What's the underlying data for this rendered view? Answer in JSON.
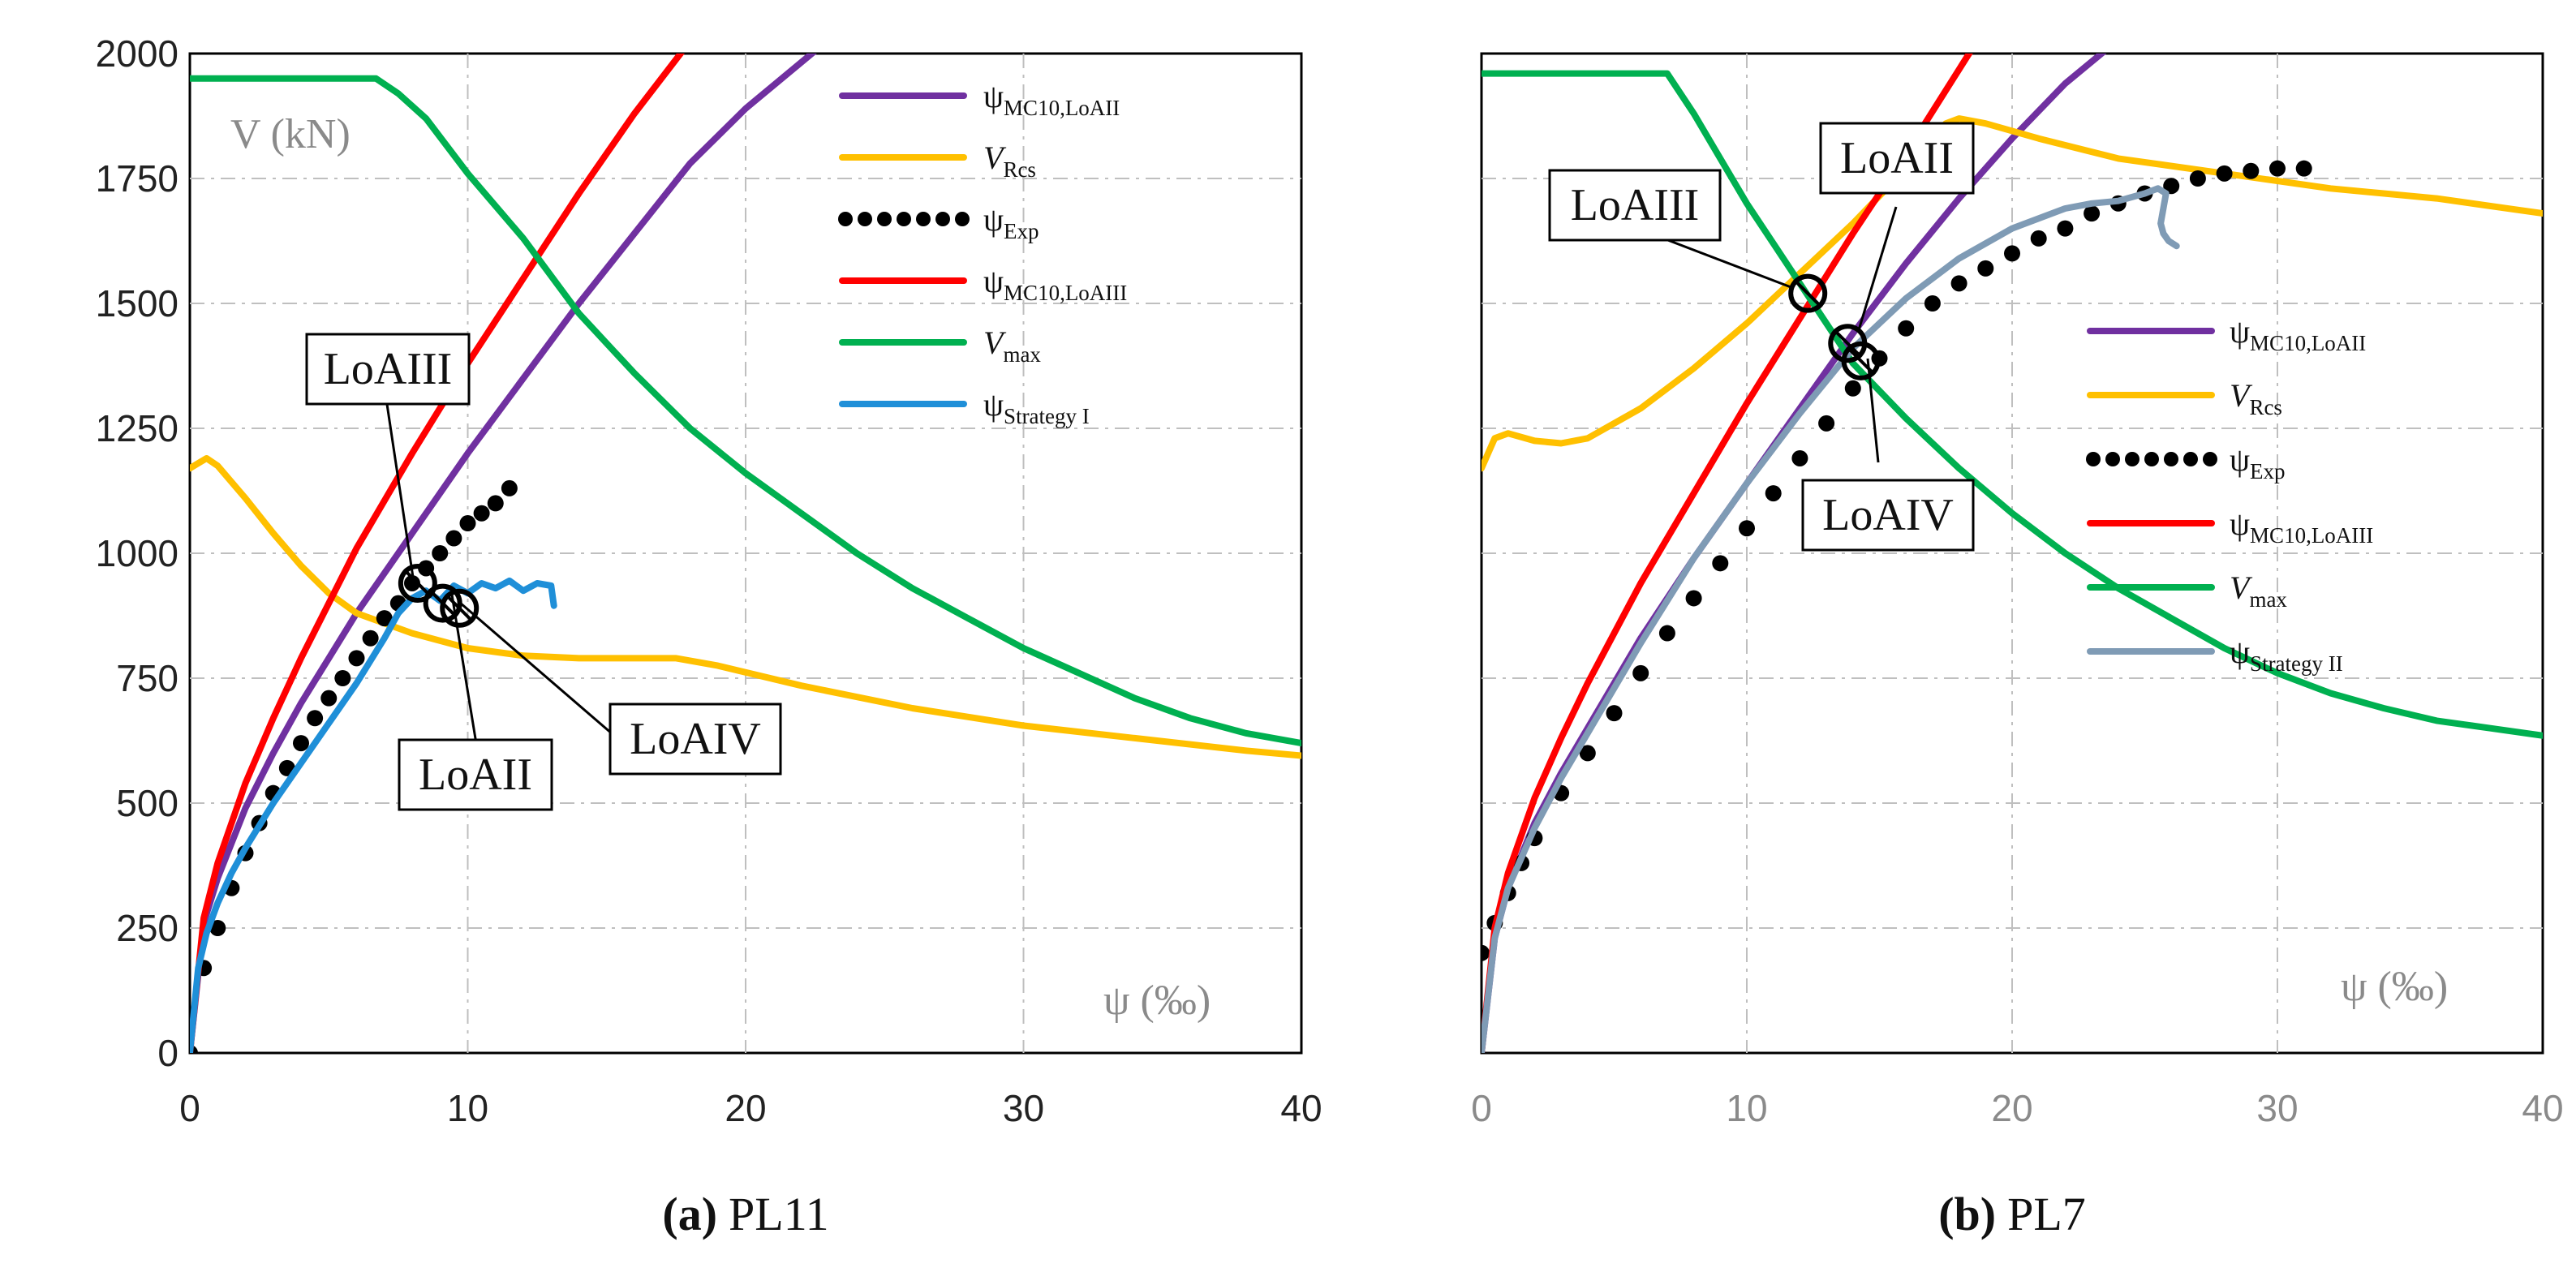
{
  "chart_data": [
    {
      "type": "line",
      "panel": "a",
      "caption_label": "(a)",
      "caption_name": "PL11",
      "ylabel": "V (kN)",
      "xlabel": "ψ (‰)",
      "xlim": [
        0,
        40
      ],
      "ylim": [
        0,
        2000
      ],
      "xticks": [
        "0",
        "10",
        "20",
        "30",
        "40"
      ],
      "yticks": [
        "0",
        "250",
        "500",
        "750",
        "1000",
        "1250",
        "1500",
        "1750",
        "2000"
      ],
      "grid": true,
      "legend_position": "top-right",
      "series": [
        {
          "key": "mc10_loaii",
          "name": "ψMC10,LoAII",
          "main": "ψ",
          "sub": "MC10,LoAII",
          "color": "#7030A0",
          "style": "solid",
          "x": [
            0,
            0.5,
            1,
            2,
            3,
            4,
            5,
            6,
            8,
            10,
            12,
            14,
            16,
            18,
            20,
            22.6
          ],
          "y": [
            0,
            260,
            350,
            490,
            600,
            700,
            790,
            880,
            1040,
            1200,
            1350,
            1500,
            1640,
            1780,
            1890,
            2010
          ]
        },
        {
          "key": "vrcs",
          "name": "VRcs",
          "main": "V",
          "sub": "Rcs",
          "color": "#FFC000",
          "style": "solid",
          "x": [
            0,
            0.3,
            0.6,
            1,
            2,
            3,
            4,
            5,
            6,
            8,
            10,
            12,
            14,
            16,
            17.5,
            19,
            22,
            26,
            30,
            34,
            38,
            40
          ],
          "y": [
            1170,
            1180,
            1190,
            1175,
            1110,
            1040,
            975,
            920,
            880,
            840,
            810,
            795,
            790,
            790,
            790,
            775,
            735,
            690,
            655,
            630,
            605,
            595
          ]
        },
        {
          "key": "exp",
          "name": "ψExp",
          "main": "ψ",
          "sub": "Exp",
          "color": "#000000",
          "style": "dotted",
          "x": [
            0,
            0.5,
            1,
            1.5,
            2,
            2.5,
            3,
            3.5,
            4,
            4.5,
            5,
            5.5,
            6,
            6.5,
            7,
            7.5,
            8,
            8.5,
            9,
            9.5,
            10,
            10.5,
            11,
            11.5
          ],
          "y": [
            0,
            170,
            250,
            330,
            400,
            460,
            520,
            570,
            620,
            670,
            710,
            750,
            790,
            830,
            870,
            900,
            940,
            970,
            1000,
            1030,
            1060,
            1080,
            1100,
            1130
          ]
        },
        {
          "key": "mc10_loaiii",
          "name": "ψMC10,LoAIII",
          "main": "ψ",
          "sub": "MC10,LoAIII",
          "color": "#FF0000",
          "style": "solid",
          "x": [
            0,
            0.5,
            1,
            2,
            3,
            4,
            5,
            6,
            8,
            10,
            12,
            14,
            16,
            17.8
          ],
          "y": [
            0,
            270,
            380,
            540,
            670,
            790,
            900,
            1010,
            1200,
            1380,
            1550,
            1720,
            1880,
            2010
          ]
        },
        {
          "key": "vmax",
          "name": "Vmax",
          "main": "V",
          "sub": "max",
          "color": "#00B050",
          "style": "solid",
          "x": [
            0,
            3,
            6.7,
            7.5,
            8.5,
            10,
            12,
            14,
            16,
            18,
            20,
            22,
            24,
            26,
            28,
            30,
            32,
            34,
            36,
            38,
            40
          ],
          "y": [
            1950,
            1950,
            1950,
            1920,
            1870,
            1760,
            1630,
            1480,
            1360,
            1250,
            1160,
            1080,
            1000,
            930,
            870,
            810,
            760,
            710,
            670,
            640,
            620
          ]
        },
        {
          "key": "strategy1",
          "name": "ψStrategy I",
          "main": "ψ",
          "sub": "Strategy I",
          "color": "#1F8FD8",
          "style": "solid",
          "x": [
            0,
            0.3,
            0.6,
            1,
            1.5,
            2,
            3,
            4,
            5,
            6,
            7,
            7.5,
            8,
            8.5,
            9,
            9.5,
            10,
            10.5,
            11,
            11.5,
            12,
            12.5,
            13,
            13.1
          ],
          "y": [
            0,
            170,
            240,
            300,
            360,
            410,
            500,
            580,
            660,
            740,
            830,
            880,
            910,
            925,
            905,
            935,
            920,
            940,
            930,
            945,
            925,
            940,
            935,
            895
          ]
        }
      ],
      "callouts": [
        {
          "text": "LoAIII",
          "point": [
            8.2,
            940
          ]
        },
        {
          "text": "LoAII",
          "point": [
            9.1,
            900
          ]
        },
        {
          "text": "LoAIV",
          "point": [
            9.7,
            890
          ]
        }
      ]
    },
    {
      "type": "line",
      "panel": "b",
      "caption_label": "(b)",
      "caption_name": "PL7",
      "xlabel": "ψ (‰)",
      "xlim": [
        0,
        40
      ],
      "ylim": [
        0,
        2000
      ],
      "xticks": [
        "0",
        "10",
        "20",
        "30",
        "40"
      ],
      "grid": true,
      "legend_position": "middle-right",
      "series": [
        {
          "key": "mc10_loaii",
          "name": "ψMC10,LoAII",
          "main": "ψ",
          "sub": "MC10,LoAII",
          "color": "#7030A0",
          "style": "solid",
          "x": [
            0,
            0.5,
            1,
            2,
            3,
            4,
            5,
            6,
            8,
            10,
            12,
            14,
            16,
            18,
            20,
            22,
            23.6
          ],
          "y": [
            0,
            230,
            330,
            460,
            560,
            650,
            740,
            830,
            990,
            1140,
            1290,
            1440,
            1580,
            1710,
            1830,
            1940,
            2010
          ]
        },
        {
          "key": "vrcs",
          "name": "VRcs",
          "main": "V",
          "sub": "Rcs",
          "color": "#FFC000",
          "style": "solid",
          "x": [
            0,
            0.5,
            1,
            2,
            3,
            4,
            6,
            8,
            10,
            12,
            14,
            16,
            17.5,
            18,
            19,
            21,
            24,
            28,
            32,
            36,
            40
          ],
          "y": [
            1170,
            1230,
            1240,
            1225,
            1220,
            1230,
            1290,
            1370,
            1460,
            1560,
            1660,
            1770,
            1860,
            1870,
            1860,
            1830,
            1790,
            1760,
            1730,
            1710,
            1680
          ]
        },
        {
          "key": "exp",
          "name": "ψExp",
          "main": "ψ",
          "sub": "Exp",
          "color": "#000000",
          "style": "dotted",
          "x": [
            0,
            0.5,
            1,
            1.5,
            2,
            3,
            4,
            5,
            6,
            7,
            8,
            9,
            10,
            11,
            12,
            13,
            14,
            15,
            16,
            17,
            18,
            19,
            20,
            21,
            22,
            23,
            24,
            25,
            26,
            27,
            28,
            29,
            30,
            31
          ],
          "y": [
            200,
            260,
            320,
            380,
            430,
            520,
            600,
            680,
            760,
            840,
            910,
            980,
            1050,
            1120,
            1190,
            1260,
            1330,
            1390,
            1450,
            1500,
            1540,
            1570,
            1600,
            1630,
            1650,
            1680,
            1700,
            1720,
            1735,
            1750,
            1760,
            1765,
            1770,
            1770
          ]
        },
        {
          "key": "mc10_loaiii",
          "name": "ψMC10,LoAIII",
          "main": "ψ",
          "sub": "MC10,LoAIII",
          "color": "#FF0000",
          "style": "solid",
          "x": [
            0,
            0.5,
            1,
            2,
            3,
            4,
            5,
            6,
            8,
            10,
            12,
            14,
            16,
            18.5
          ],
          "y": [
            0,
            250,
            360,
            510,
            630,
            740,
            840,
            940,
            1120,
            1300,
            1470,
            1640,
            1800,
            2010
          ]
        },
        {
          "key": "vmax",
          "name": "Vmax",
          "main": "V",
          "sub": "max",
          "color": "#00B050",
          "style": "solid",
          "x": [
            0,
            3,
            7,
            8,
            9,
            10,
            11,
            12,
            13,
            14,
            16,
            18,
            20,
            22,
            24,
            26,
            28,
            30,
            32,
            34,
            36,
            38,
            40
          ],
          "y": [
            1960,
            1960,
            1960,
            1880,
            1790,
            1700,
            1620,
            1540,
            1460,
            1380,
            1270,
            1170,
            1080,
            1000,
            930,
            870,
            810,
            760,
            720,
            690,
            665,
            650,
            635
          ]
        },
        {
          "key": "strategy2",
          "name": "ψStrategy II",
          "main": "ψ",
          "sub": "Strategy II",
          "color": "#7F9BB5",
          "style": "solid",
          "x": [
            0,
            0.5,
            1,
            2,
            3,
            4,
            5,
            6,
            8,
            10,
            12,
            14,
            16,
            18,
            20,
            22,
            23,
            24,
            25,
            25.5,
            25.8,
            25.6,
            25.7,
            25.9,
            26.2
          ],
          "y": [
            0,
            230,
            330,
            450,
            550,
            640,
            730,
            820,
            990,
            1140,
            1280,
            1410,
            1510,
            1590,
            1650,
            1690,
            1700,
            1705,
            1720,
            1730,
            1720,
            1660,
            1640,
            1625,
            1615
          ]
        }
      ],
      "callouts": [
        {
          "text": "LoAIII",
          "point": [
            12.3,
            1520
          ]
        },
        {
          "text": "LoAII",
          "point": [
            13.8,
            1420
          ]
        },
        {
          "text": "LoAIV",
          "point": [
            14.3,
            1385
          ]
        }
      ]
    }
  ],
  "colors": {
    "grid": "#BFBFBF",
    "axis": "#000000",
    "grey_text": "#8A8A8A"
  }
}
